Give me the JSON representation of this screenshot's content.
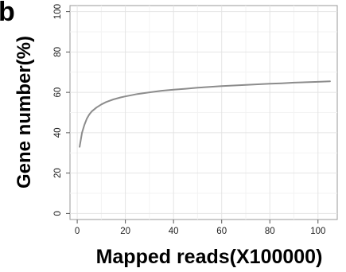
{
  "panel_label": "b",
  "chart_data": {
    "type": "line",
    "title": "",
    "xlabel": "Mapped reads(X100000)",
    "ylabel": "Gene number(%)",
    "xlim": [
      -3,
      108
    ],
    "ylim": [
      -3,
      103
    ],
    "xticks": [
      0,
      20,
      40,
      60,
      80,
      100
    ],
    "yticks": [
      0,
      20,
      40,
      60,
      80,
      100
    ],
    "grid": true,
    "series": [
      {
        "color": "#8c8c8c",
        "x": [
          1,
          2,
          3,
          4,
          5,
          6,
          8,
          10,
          12,
          15,
          18,
          20,
          25,
          30,
          35,
          40,
          45,
          50,
          55,
          60,
          65,
          70,
          75,
          80,
          85,
          90,
          95,
          100,
          105
        ],
        "y": [
          33,
          40,
          44,
          47,
          49,
          50.5,
          52.5,
          54,
          55.2,
          56.5,
          57.5,
          58,
          59.2,
          60,
          60.8,
          61.3,
          61.8,
          62.3,
          62.7,
          63.1,
          63.4,
          63.7,
          64,
          64.3,
          64.5,
          64.8,
          65,
          65.2,
          65.5
        ]
      }
    ]
  }
}
